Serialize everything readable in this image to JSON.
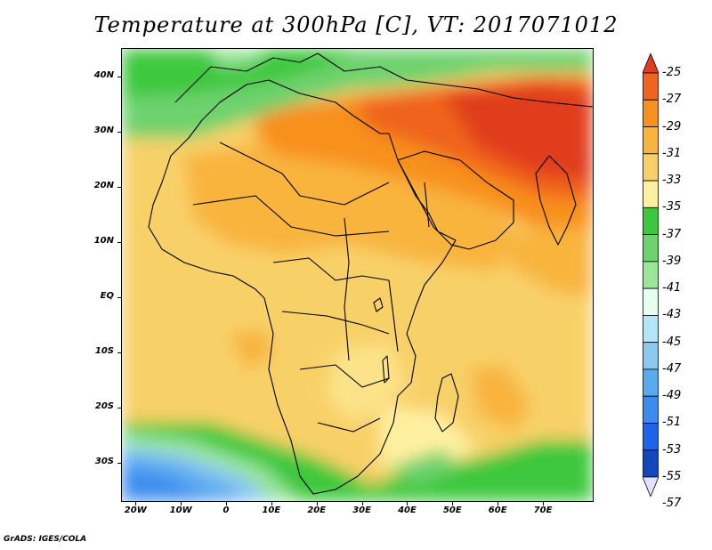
{
  "title": "Temperature at 300hPa [C], VT: 2017071012",
  "credit": "GrADS: IGES/COLA",
  "map": {
    "lon_range": [
      -23,
      81
    ],
    "lat_range": [
      -37,
      45
    ],
    "lat_labels": [
      {
        "lat": 40,
        "text": "40N"
      },
      {
        "lat": 30,
        "text": "30N"
      },
      {
        "lat": 20,
        "text": "20N"
      },
      {
        "lat": 10,
        "text": "10N"
      },
      {
        "lat": 0,
        "text": "EQ"
      },
      {
        "lat": -10,
        "text": "10S"
      },
      {
        "lat": -20,
        "text": "20S"
      },
      {
        "lat": -30,
        "text": "30S"
      }
    ],
    "lon_labels": [
      {
        "lon": -20,
        "text": "20W"
      },
      {
        "lon": -10,
        "text": "10W"
      },
      {
        "lon": 0,
        "text": "0"
      },
      {
        "lon": 10,
        "text": "10E"
      },
      {
        "lon": 20,
        "text": "20E"
      },
      {
        "lon": 30,
        "text": "30E"
      },
      {
        "lon": 40,
        "text": "40E"
      },
      {
        "lon": 50,
        "text": "50E"
      },
      {
        "lon": 60,
        "text": "60E"
      },
      {
        "lon": 70,
        "text": "70E"
      }
    ]
  },
  "colorbar": {
    "levels": [
      "-25",
      "-27",
      "-29",
      "-31",
      "-33",
      "-35",
      "-37",
      "-39",
      "-41",
      "-43",
      "-45",
      "-47",
      "-49",
      "-51",
      "-53",
      "-55",
      "-57"
    ],
    "colors": [
      "#e03c1e",
      "#f0641e",
      "#f8901e",
      "#f8b43c",
      "#f8d068",
      "#fff0a0",
      "#3cc83c",
      "#6ed26e",
      "#9ce69c",
      "#e6fff0",
      "#b4e6fa",
      "#8cc8f0",
      "#5aaaf0",
      "#3c8cf0",
      "#1e64e6",
      "#1446be",
      "#0a1478"
    ]
  }
}
